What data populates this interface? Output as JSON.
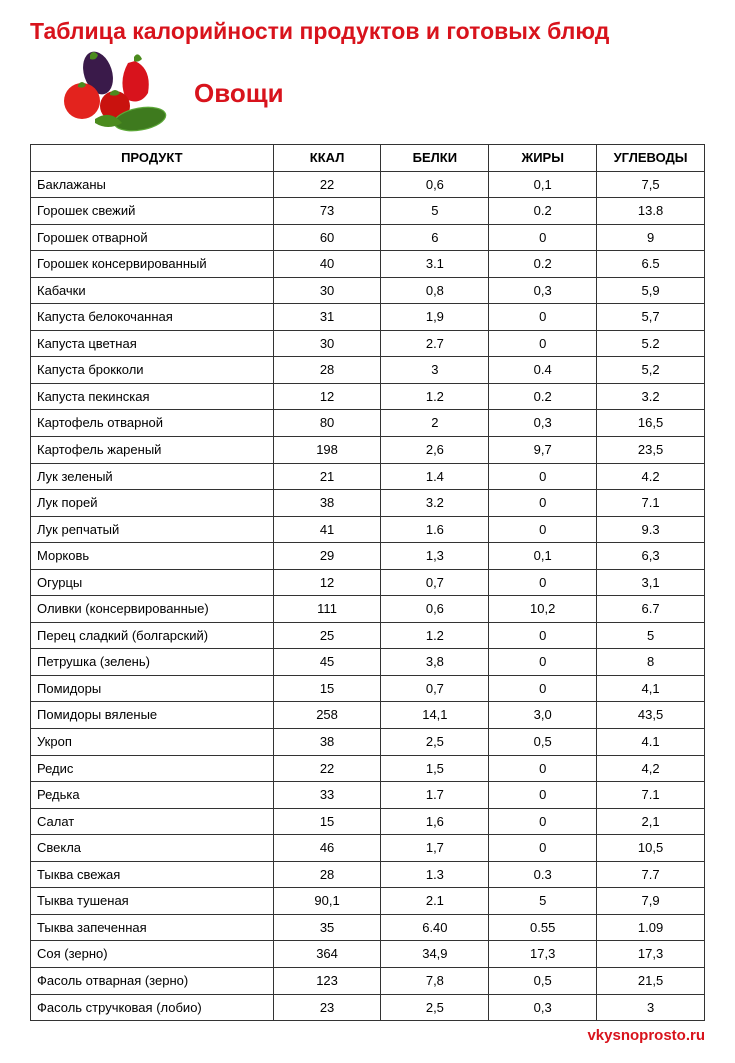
{
  "title": "Таблица калорийности продуктов и готовых блюд",
  "section": "Овощи",
  "footer": "vkysnoprosto.ru",
  "colors": {
    "accent": "#d8131c",
    "text": "#000000",
    "border": "#333333",
    "background": "#ffffff"
  },
  "typography": {
    "title_font": "Comic Sans MS",
    "title_size_pt": 18,
    "section_size_pt": 20,
    "body_font": "Arial",
    "cell_size_pt": 10
  },
  "table": {
    "columns": [
      "ПРОДУКТ",
      "ККАЛ",
      "БЕЛКИ",
      "ЖИРЫ",
      "УГЛЕВОДЫ"
    ],
    "column_widths_pct": [
      36,
      16,
      16,
      16,
      16
    ],
    "column_align": [
      "left",
      "center",
      "center",
      "center",
      "center"
    ],
    "rows": [
      [
        "Баклажаны",
        "22",
        "0,6",
        "0,1",
        "7,5"
      ],
      [
        "Горошек свежий",
        "73",
        "5",
        "0.2",
        "13.8"
      ],
      [
        "Горошек отварной",
        "60",
        "6",
        "0",
        "9"
      ],
      [
        "Горошек консервированный",
        "40",
        "3.1",
        "0.2",
        "6.5"
      ],
      [
        "Кабачки",
        "30",
        "0,8",
        "0,3",
        "5,9"
      ],
      [
        "Капуста белокочанная",
        "31",
        "1,9",
        "0",
        "5,7"
      ],
      [
        "Капуста цветная",
        "30",
        "2.7",
        "0",
        "5.2"
      ],
      [
        "Капуста брокколи",
        "28",
        "3",
        "0.4",
        "5,2"
      ],
      [
        "Капуста пекинская",
        "12",
        "1.2",
        "0.2",
        "3.2"
      ],
      [
        "Картофель отварной",
        "80",
        "2",
        "0,3",
        "16,5"
      ],
      [
        "Картофель жареный",
        "198",
        "2,6",
        "9,7",
        "23,5"
      ],
      [
        "Лук зеленый",
        "21",
        "1.4",
        "0",
        "4.2"
      ],
      [
        "Лук порей",
        "38",
        "3.2",
        "0",
        "7.1"
      ],
      [
        "Лук репчатый",
        "41",
        "1.6",
        "0",
        "9.3"
      ],
      [
        "Морковь",
        "29",
        "1,3",
        "0,1",
        "6,3"
      ],
      [
        "Огурцы",
        "12",
        "0,7",
        "0",
        "3,1"
      ],
      [
        "Оливки (консервированные)",
        "111",
        "0,6",
        "10,2",
        "6.7"
      ],
      [
        "Перец сладкий (болгарский)",
        "25",
        "1.2",
        "0",
        "5"
      ],
      [
        "Петрушка (зелень)",
        "45",
        "3,8",
        "0",
        "8"
      ],
      [
        "Помидоры",
        "15",
        "0,7",
        "0",
        "4,1"
      ],
      [
        "Помидоры вяленые",
        "258",
        "14,1",
        "3,0",
        "43,5"
      ],
      [
        "Укроп",
        "38",
        "2,5",
        "0,5",
        "4.1"
      ],
      [
        "Редис",
        "22",
        "1,5",
        "0",
        "4,2"
      ],
      [
        "Редька",
        "33",
        "1.7",
        "0",
        "7.1"
      ],
      [
        "Салат",
        "15",
        "1,6",
        "0",
        "2,1"
      ],
      [
        "Свекла",
        "46",
        "1,7",
        "0",
        "10,5"
      ],
      [
        "Тыква свежая",
        "28",
        "1.3",
        "0.3",
        "7.7"
      ],
      [
        "Тыква тушеная",
        "90,1",
        "2.1",
        "5",
        "7,9"
      ],
      [
        "Тыква запеченная",
        "35",
        "6.40",
        "0.55",
        "1.09"
      ],
      [
        "Соя (зерно)",
        "364",
        "34,9",
        "17,3",
        "17,3"
      ],
      [
        "Фасоль отварная (зерно)",
        "123",
        "7,8",
        "0,5",
        "21,5"
      ],
      [
        "Фасоль стручковая (лобио)",
        "23",
        "2,5",
        "0,3",
        "3"
      ]
    ]
  }
}
